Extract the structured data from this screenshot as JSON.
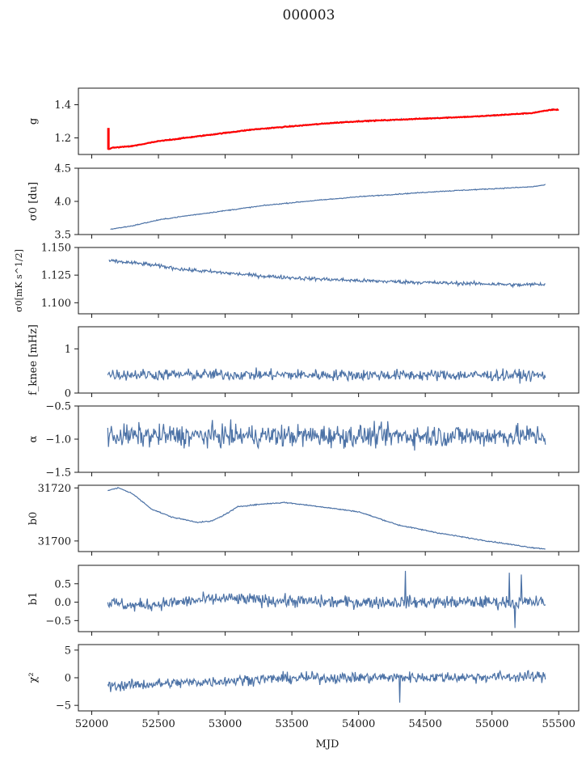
{
  "figure": {
    "title": "000003",
    "xlabel": "MJD"
  },
  "colors": {
    "series": "#4c72a6",
    "model": "#ff0000",
    "axis": "#1a1a1a"
  },
  "chart_data": [
    {
      "type": "line",
      "ylabel": "g",
      "xlim": [
        51900,
        55650
      ],
      "ylim": [
        1.1,
        1.5
      ],
      "yticks": [
        1.2,
        1.4
      ],
      "yticklabels": [
        "1.2",
        "1.4"
      ],
      "xticks": [
        52000,
        52500,
        53000,
        53500,
        54000,
        54500,
        55000,
        55500
      ],
      "xticklabels": [],
      "trend": {
        "x": [
          52120,
          52150,
          52300,
          52500,
          52700,
          53000,
          53200,
          53500,
          53800,
          54000,
          54300,
          54600,
          54900,
          55100,
          55300,
          55450,
          55500
        ],
        "y": [
          1.13,
          1.14,
          1.15,
          1.18,
          1.2,
          1.23,
          1.25,
          1.27,
          1.29,
          1.3,
          1.31,
          1.32,
          1.33,
          1.34,
          1.35,
          1.37,
          1.37
        ]
      },
      "noise": 0.003,
      "series_color": "#4c72a6",
      "overlay": {
        "color": "#ff0000",
        "spike": {
          "x": 52125,
          "y": [
            1.13,
            1.26
          ]
        }
      }
    },
    {
      "type": "line",
      "ylabel": "σ0 [du]",
      "xlim": [
        51900,
        55650
      ],
      "ylim": [
        3.5,
        4.5
      ],
      "yticks": [
        3.5,
        4.0,
        4.5
      ],
      "yticklabels": [
        "3.5",
        "4.0",
        "4.5"
      ],
      "xticks": [
        52000,
        52500,
        53000,
        53500,
        54000,
        54500,
        55000,
        55500
      ],
      "xticklabels": [],
      "trend": {
        "x": [
          52140,
          52300,
          52500,
          52700,
          53000,
          53300,
          53600,
          54000,
          54300,
          54600,
          55000,
          55300,
          55400
        ],
        "y": [
          3.58,
          3.63,
          3.72,
          3.78,
          3.86,
          3.94,
          4.0,
          4.07,
          4.11,
          4.15,
          4.19,
          4.22,
          4.25
        ]
      },
      "noise": 0.005,
      "series_color": "#4c72a6"
    },
    {
      "type": "line",
      "ylabel": "σ0[mK s^1/2]",
      "xlim": [
        51900,
        55650
      ],
      "ylim": [
        1.09,
        1.15
      ],
      "yticks": [
        1.1,
        1.125,
        1.15
      ],
      "yticklabels": [
        "1.100",
        "1.125",
        "1.150"
      ],
      "xticks": [
        52000,
        52500,
        53000,
        53500,
        54000,
        54500,
        55000,
        55500
      ],
      "xticklabels": [],
      "trend": {
        "x": [
          52130,
          52400,
          52700,
          53000,
          53300,
          53600,
          54000,
          54300,
          54600,
          55000,
          55200,
          55400
        ],
        "y": [
          1.138,
          1.135,
          1.13,
          1.127,
          1.124,
          1.122,
          1.12,
          1.119,
          1.118,
          1.117,
          1.116,
          1.117
        ]
      },
      "noise": 0.0012,
      "series_color": "#4c72a6"
    },
    {
      "type": "line",
      "ylabel": "f_knee [mHz]",
      "xlim": [
        51900,
        55650
      ],
      "ylim": [
        0,
        1.5
      ],
      "yticks": [
        0,
        1
      ],
      "yticklabels": [
        "0",
        "1"
      ],
      "xticks": [
        52000,
        52500,
        53000,
        53500,
        54000,
        54500,
        55000,
        55500
      ],
      "xticklabels": [],
      "trend": {
        "x": [
          52120,
          55400
        ],
        "y": [
          0.42,
          0.4
        ]
      },
      "noise": 0.09,
      "series_color": "#4c72a6"
    },
    {
      "type": "line",
      "ylabel": "α",
      "xlim": [
        51900,
        55650
      ],
      "ylim": [
        -1.5,
        -0.5
      ],
      "yticks": [
        -1.5,
        -1.0,
        -0.5
      ],
      "yticklabels": [
        "−1.5",
        "−1.0",
        "−0.5"
      ],
      "xticks": [
        52000,
        52500,
        53000,
        53500,
        54000,
        54500,
        55000,
        55500
      ],
      "xticklabels": [],
      "trend": {
        "x": [
          52120,
          55400
        ],
        "y": [
          -0.95,
          -0.95
        ]
      },
      "noise": 0.12,
      "series_color": "#4c72a6"
    },
    {
      "type": "line",
      "ylabel": "b0",
      "xlim": [
        51900,
        55650
      ],
      "ylim": [
        31696,
        31721
      ],
      "yticks": [
        31700,
        31720
      ],
      "yticklabels": [
        "31700",
        "31720"
      ],
      "xticks": [
        52000,
        52500,
        53000,
        53500,
        54000,
        54500,
        55000,
        55500
      ],
      "xticklabels": [],
      "trend": {
        "x": [
          52120,
          52200,
          52300,
          52450,
          52600,
          52800,
          52900,
          53000,
          53100,
          53300,
          53450,
          53700,
          54000,
          54300,
          54600,
          54900,
          55100,
          55300,
          55400
        ],
        "y": [
          31719,
          31720,
          31718,
          31712,
          31709,
          31707,
          31707.5,
          31710,
          31713,
          31714,
          31714.5,
          31713,
          31711,
          31706,
          31703,
          31700.5,
          31699,
          31697.5,
          31697
        ]
      },
      "noise": 0.15,
      "series_color": "#4c72a6"
    },
    {
      "type": "line",
      "ylabel": "b1",
      "xlim": [
        51900,
        55650
      ],
      "ylim": [
        -0.8,
        1.0
      ],
      "yticks": [
        -0.5,
        0.0,
        0.5
      ],
      "yticklabels": [
        "−0.5",
        "0.0",
        "0.5"
      ],
      "xticks": [
        52000,
        52500,
        53000,
        53500,
        54000,
        54500,
        55000,
        55500
      ],
      "xticklabels": [],
      "trend": {
        "x": [
          52120,
          52300,
          52500,
          52800,
          53000,
          53300,
          53800,
          54200,
          54600,
          55000,
          55400
        ],
        "y": [
          0.0,
          -0.1,
          -0.05,
          0.05,
          0.1,
          0.05,
          0.0,
          0.0,
          0.0,
          0.0,
          0.0
        ]
      },
      "noise": 0.12,
      "spikes": [
        {
          "x": 54350,
          "y": 0.85
        },
        {
          "x": 55130,
          "y": 0.8
        },
        {
          "x": 55220,
          "y": 0.75
        },
        {
          "x": 55170,
          "y": -0.7
        }
      ],
      "series_color": "#4c72a6"
    },
    {
      "type": "line",
      "ylabel": "χ²",
      "xlim": [
        51900,
        55650
      ],
      "ylim": [
        -6,
        6
      ],
      "yticks": [
        -5,
        0,
        5
      ],
      "yticklabels": [
        "−5",
        "0",
        "5"
      ],
      "xticks": [
        52000,
        52500,
        53000,
        53500,
        54000,
        54500,
        55000,
        55500
      ],
      "xticklabels": [
        "52000",
        "52500",
        "53000",
        "53500",
        "54000",
        "54500",
        "55000",
        "55500"
      ],
      "trend": {
        "x": [
          52120,
          52400,
          52800,
          53200,
          53600,
          54000,
          54400,
          54800,
          55200,
          55400
        ],
        "y": [
          -1.5,
          -1.2,
          -0.8,
          -0.3,
          0.0,
          0.0,
          0.1,
          0.1,
          0.2,
          0.2
        ]
      },
      "noise": 0.7,
      "spikes": [
        {
          "x": 54310,
          "y": -4.5
        }
      ],
      "series_color": "#4c72a6"
    }
  ]
}
